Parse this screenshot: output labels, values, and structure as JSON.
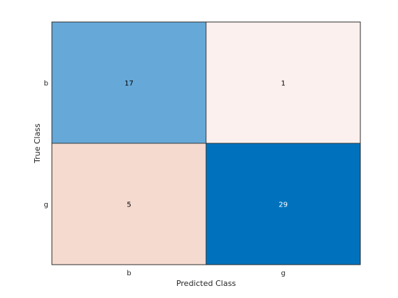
{
  "chart_data": {
    "type": "heatmap",
    "subtype": "confusion-matrix",
    "xlabel": "Predicted Class",
    "ylabel": "True Class",
    "x_categories": [
      "b",
      "g"
    ],
    "y_categories": [
      "b",
      "g"
    ],
    "values": [
      [
        17,
        1
      ],
      [
        5,
        29
      ]
    ],
    "cell_colors": [
      [
        "#66a9d9",
        "#fbf0ed"
      ],
      [
        "#f5dacf",
        "#0072bd"
      ]
    ],
    "text_colors": [
      [
        "#000000",
        "#000000"
      ],
      [
        "#000000",
        "#ffffff"
      ]
    ],
    "grid": false,
    "legend": "none"
  }
}
